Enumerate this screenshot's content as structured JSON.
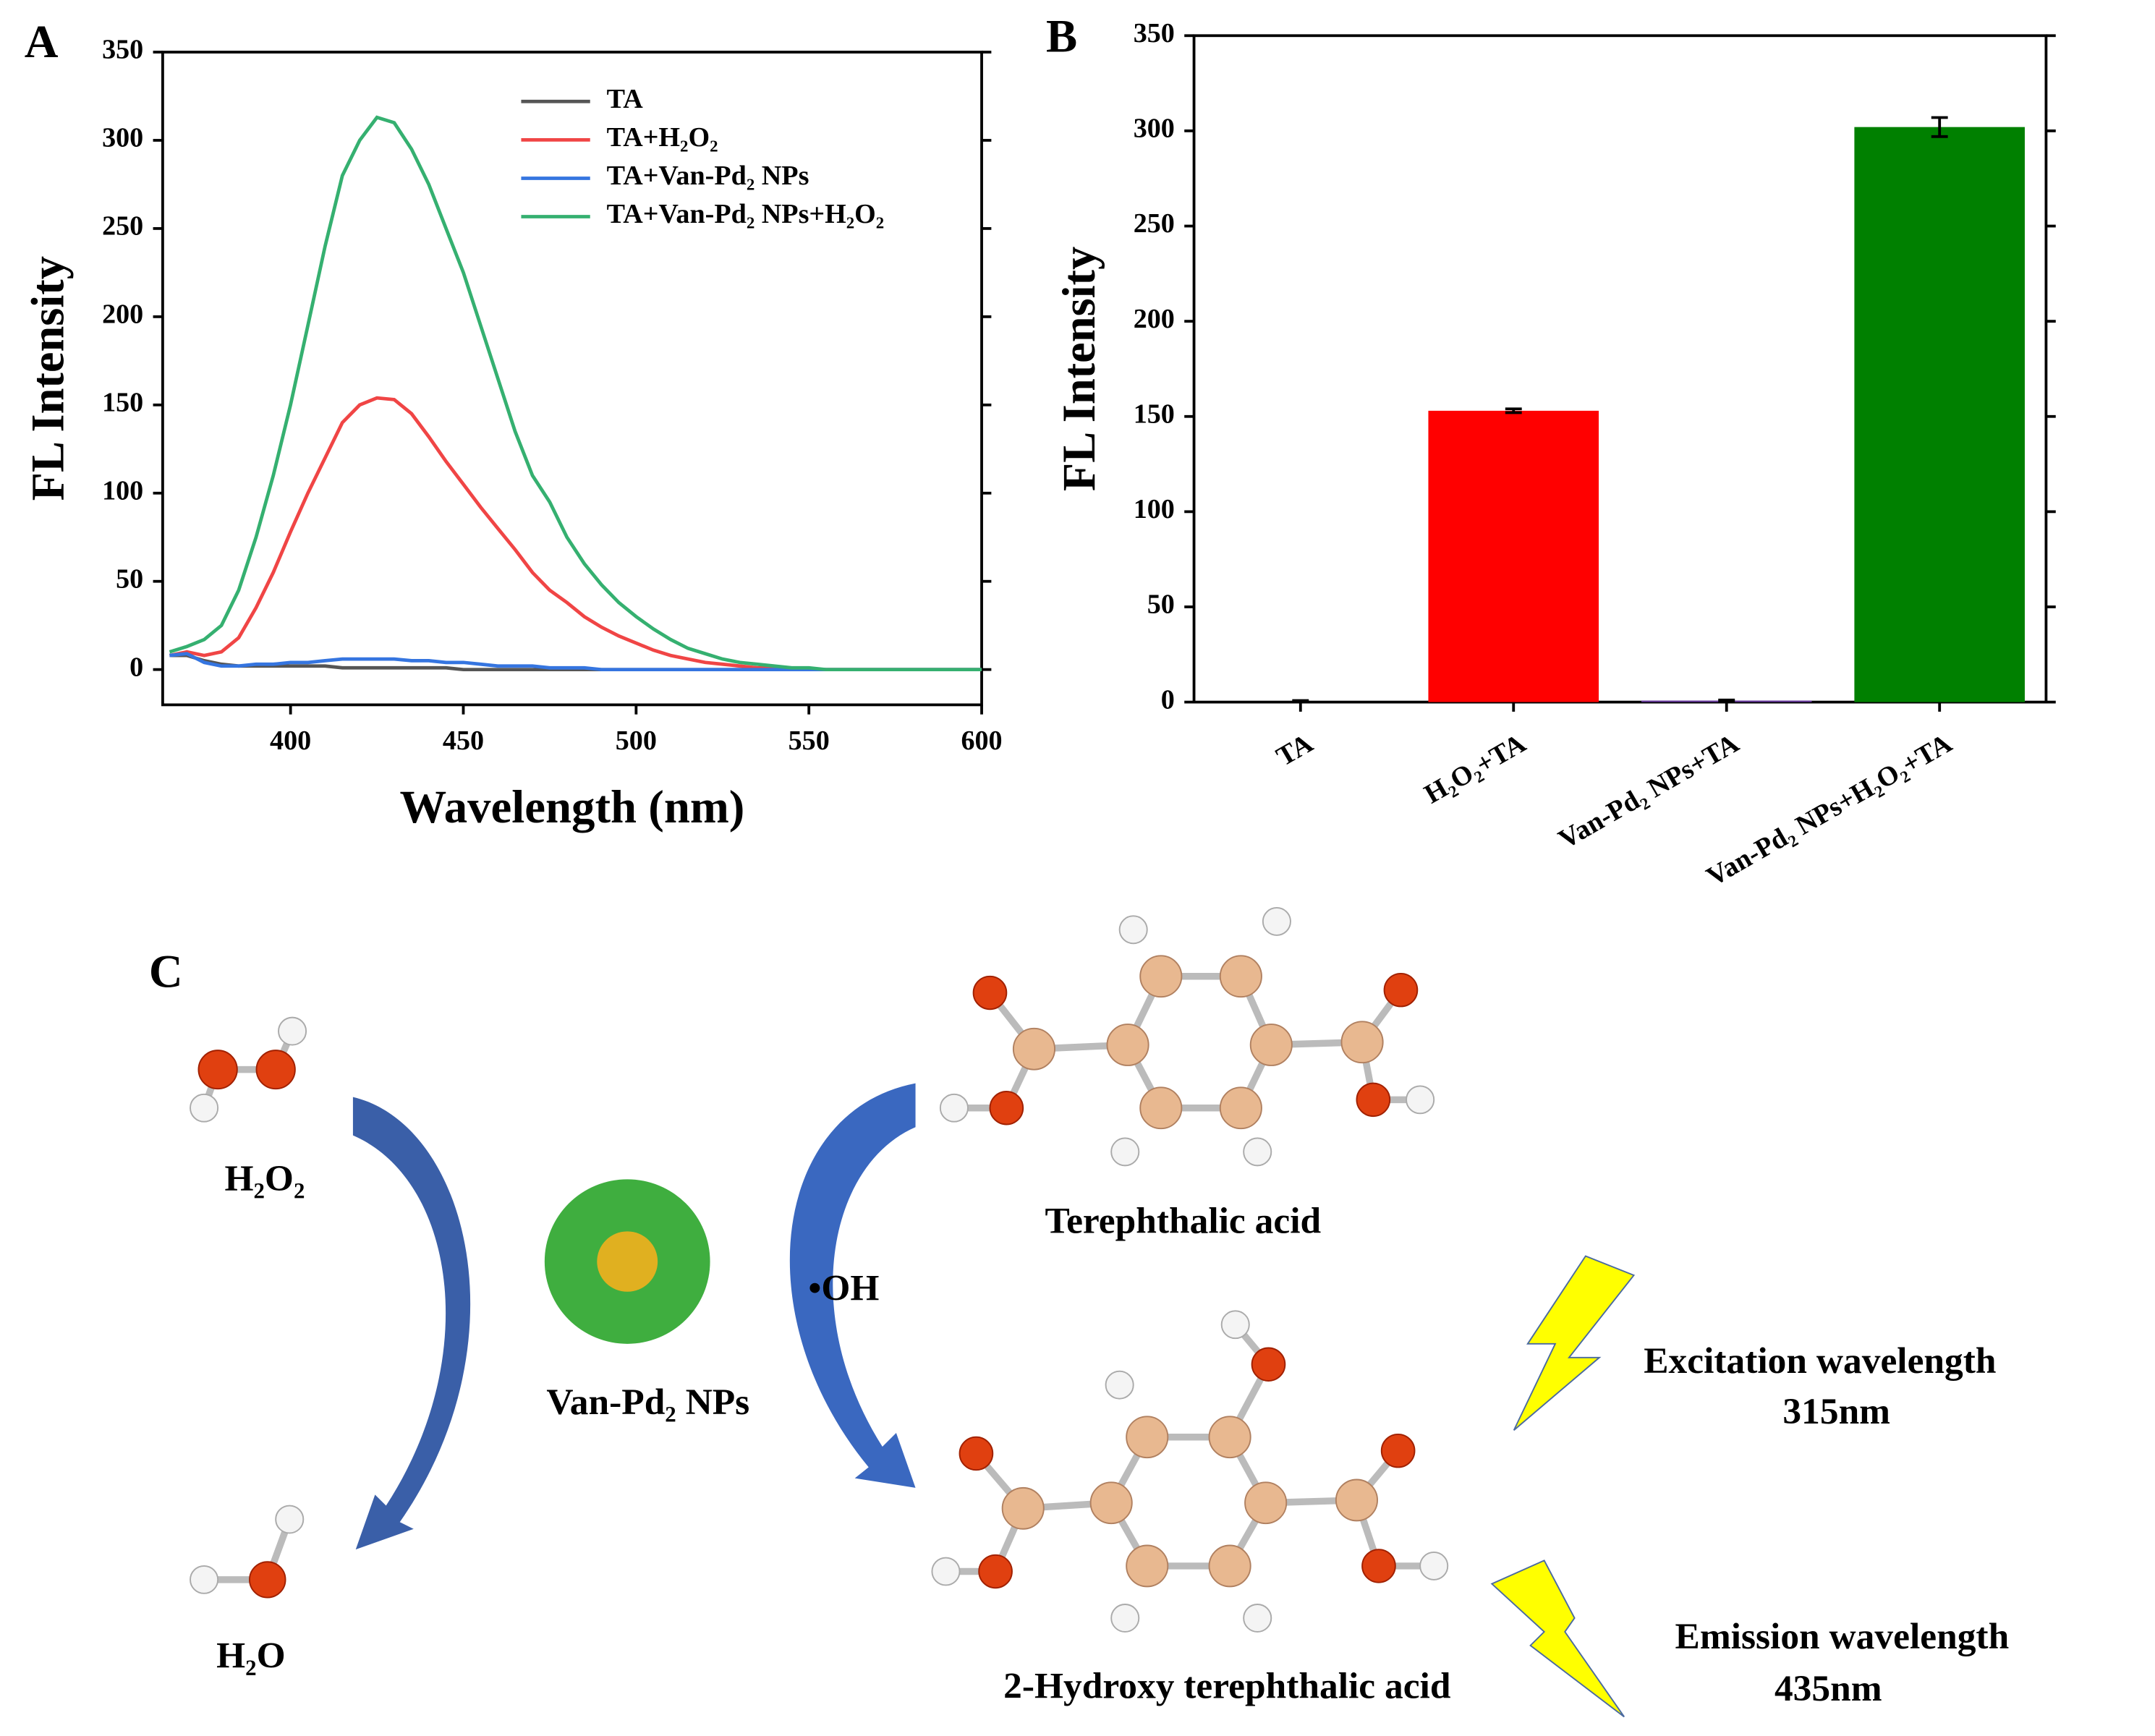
{
  "chart_data": [
    {
      "type": "line",
      "label": "A",
      "y_label": "FL Intensity",
      "x_label": "Wavelength (nm)",
      "x": [
        365,
        370,
        375,
        380,
        385,
        390,
        395,
        400,
        405,
        410,
        415,
        420,
        425,
        430,
        435,
        440,
        445,
        450,
        455,
        460,
        465,
        470,
        475,
        480,
        485,
        490,
        495,
        500,
        505,
        510,
        515,
        520,
        525,
        530,
        535,
        540,
        545,
        550,
        555,
        560,
        565,
        570,
        575,
        580,
        585,
        590,
        595,
        600
      ],
      "series": [
        {
          "name": "TA",
          "color": "#555555",
          "values": [
            8,
            8,
            5,
            3,
            2,
            2,
            2,
            2,
            2,
            2,
            1,
            1,
            1,
            1,
            1,
            1,
            1,
            0,
            0,
            0,
            0,
            0,
            0,
            0,
            0,
            0,
            0,
            0,
            0,
            0,
            0,
            0,
            0,
            0,
            0,
            0,
            0,
            0,
            0,
            0,
            0,
            0,
            0,
            0,
            0,
            0,
            0,
            0
          ]
        },
        {
          "name": "TA+H₂O₂",
          "color": "#f04545",
          "values": [
            8,
            10,
            8,
            10,
            18,
            35,
            55,
            78,
            100,
            120,
            140,
            150,
            154,
            153,
            145,
            132,
            118,
            105,
            92,
            80,
            68,
            55,
            45,
            38,
            30,
            24,
            19,
            15,
            11,
            8,
            6,
            4,
            3,
            2,
            1,
            1,
            0,
            0,
            0,
            0,
            0,
            0,
            0,
            0,
            0,
            0,
            0,
            0
          ]
        },
        {
          "name": "TA+Van-Pd₂ NPs",
          "color": "#3575e0",
          "values": [
            8,
            9,
            4,
            2,
            2,
            3,
            3,
            4,
            4,
            5,
            6,
            6,
            6,
            6,
            5,
            5,
            4,
            4,
            3,
            2,
            2,
            2,
            1,
            1,
            1,
            0,
            0,
            0,
            0,
            0,
            0,
            0,
            0,
            0,
            0,
            0,
            0,
            0,
            0,
            0,
            0,
            0,
            0,
            0,
            0,
            0,
            0,
            0
          ]
        },
        {
          "name": "TA+Van-Pd₂ NPs+H₂O₂",
          "color": "#35b070",
          "values": [
            10,
            13,
            17,
            25,
            45,
            75,
            110,
            150,
            195,
            240,
            280,
            300,
            313,
            310,
            295,
            275,
            250,
            225,
            195,
            165,
            135,
            110,
            95,
            75,
            60,
            48,
            38,
            30,
            23,
            17,
            12,
            9,
            6,
            4,
            3,
            2,
            1,
            1,
            0,
            0,
            0,
            0,
            0,
            0,
            0,
            0,
            0,
            0
          ]
        }
      ],
      "xlim": [
        363,
        600
      ],
      "xticks": [
        400,
        450,
        500,
        550,
        600
      ],
      "ylim": [
        -20,
        350
      ],
      "yticks": [
        0,
        50,
        100,
        150,
        200,
        250,
        300,
        350
      ]
    },
    {
      "type": "bar",
      "label": "B",
      "y_label": "FL Intensity",
      "categories": [
        "TA",
        "H₂O₂+TA",
        "Van-Pd₂ NPs+TA",
        "Van-Pd₂ NPs+H₂O₂+TA"
      ],
      "values": [
        0.5,
        153,
        0.8,
        302
      ],
      "errors": [
        0.3,
        1,
        0.3,
        5
      ],
      "colors": [
        "#000000",
        "#ff0000",
        "#6a3aa0",
        "#008000"
      ],
      "ylim": [
        0,
        350
      ],
      "yticks": [
        0,
        50,
        100,
        150,
        200,
        250,
        300,
        350
      ]
    }
  ],
  "diagram": {
    "label": "C",
    "h2o2": "H₂O₂",
    "h2o": "H₂O",
    "catalyst": "Van-Pd₂ NPs",
    "radical": "•OH",
    "reactant": "Terephthalic acid",
    "product": "2-Hydroxy terephthalic acid",
    "excitation": "Excitation wavelength",
    "excitation_value": "315nm",
    "emission": "Emission wavelength",
    "emission_value": "435nm"
  }
}
